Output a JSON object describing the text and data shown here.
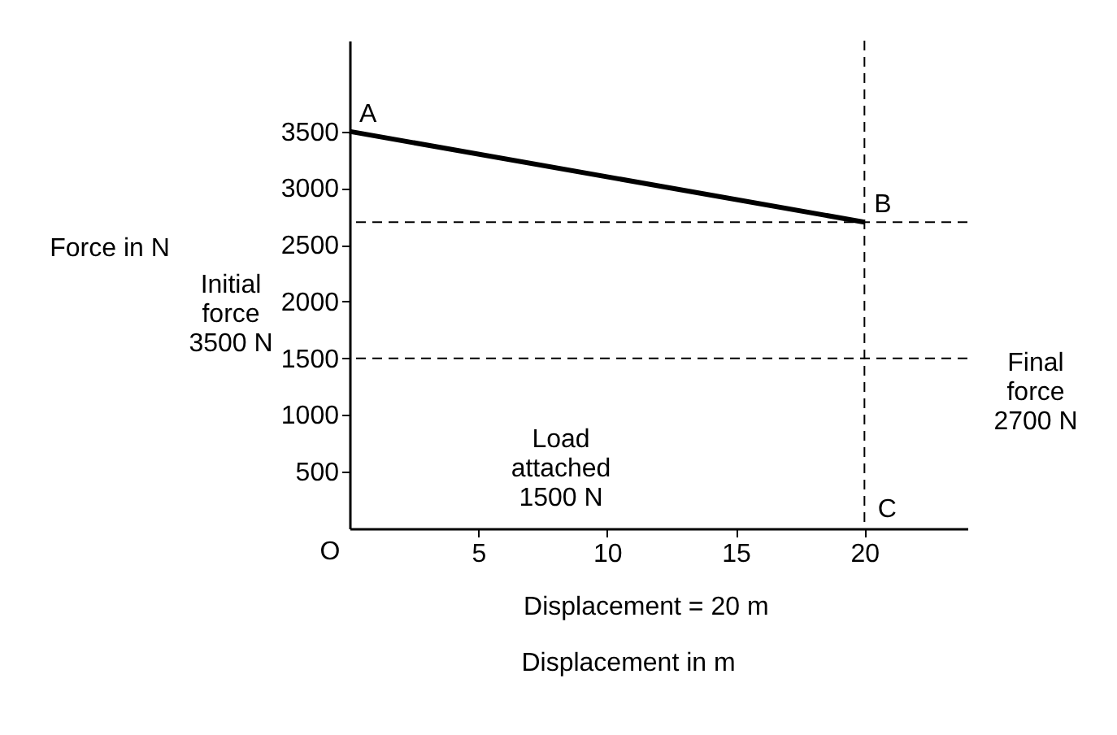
{
  "chart_data": {
    "type": "line",
    "x": [
      0,
      20
    ],
    "series": [
      {
        "color": "#000000",
        "values": [
          3500,
          2700
        ]
      }
    ],
    "xlim": [
      0,
      24
    ],
    "ylim": [
      0,
      4300
    ],
    "xticks": [
      5,
      10,
      15,
      20
    ],
    "yticks": [
      500,
      1000,
      1500,
      2000,
      2500,
      3000,
      3500
    ],
    "xlabel": "Displacement in m",
    "ylabel": "Force in N",
    "ref_lines": [
      {
        "axis": "y",
        "value": 2700,
        "line_style": "dashed"
      },
      {
        "axis": "y",
        "value": 1500,
        "line_style": "dashed"
      },
      {
        "axis": "x",
        "value": 20,
        "line_style": "dashed"
      }
    ],
    "annotations": [
      {
        "text": "A",
        "x": 0,
        "y": 3500
      },
      {
        "text": "B",
        "x": 20,
        "y": 2700
      },
      "C",
      "O",
      "Load\nattached\n1500 N",
      "Initial\nforce\n3500 N",
      "Final\nforce\n2700 N",
      "Displacement = 20 m"
    ],
    "grid": false,
    "marker": "none",
    "line_style": "solid"
  }
}
